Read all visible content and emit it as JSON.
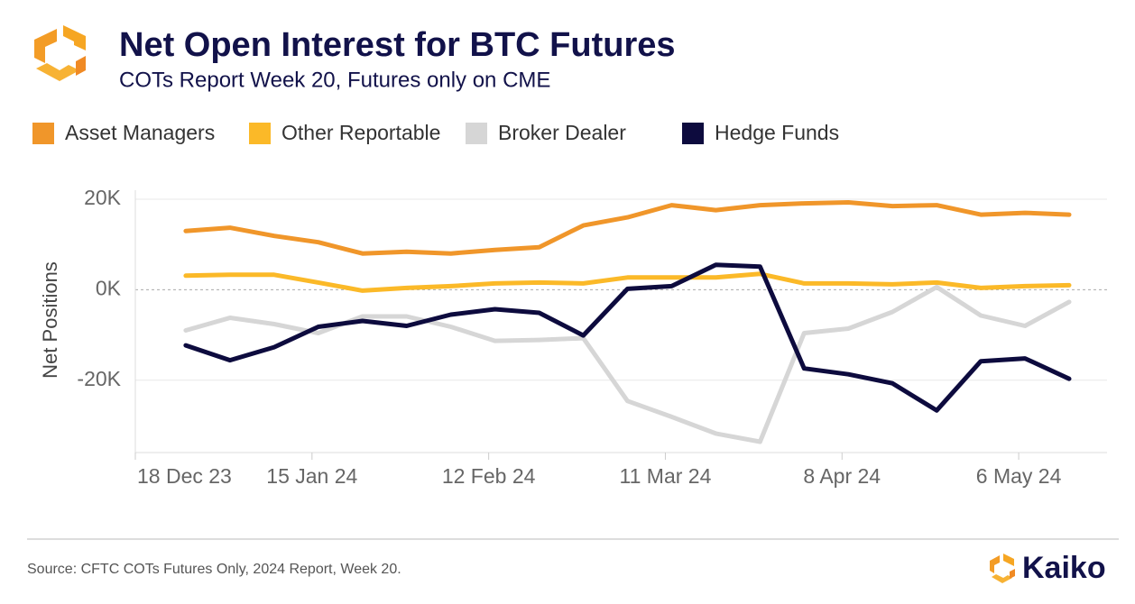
{
  "chart_data": {
    "type": "line",
    "title": "Net Open Interest for BTC Futures",
    "subtitle": "COTs Report Week 20, Futures only on CME",
    "y_label": "Net Positions",
    "source": "Source: CFTC COTs Futures Only, 2024 Report, Week 20.",
    "brand": "Kaiko",
    "x": [
      "2023-12-26",
      "2024-01-02",
      "2024-01-09",
      "2024-01-16",
      "2024-01-23",
      "2024-01-30",
      "2024-02-06",
      "2024-02-13",
      "2024-02-20",
      "2024-02-27",
      "2024-03-05",
      "2024-03-12",
      "2024-03-19",
      "2024-03-26",
      "2024-04-02",
      "2024-04-09",
      "2024-04-16",
      "2024-04-23",
      "2024-04-30",
      "2024-05-07",
      "2024-05-14"
    ],
    "xlim": [
      "2023-12-18",
      "2024-05-20"
    ],
    "xticks": [
      {
        "value": "2023-12-18",
        "label": "18 Dec 23"
      },
      {
        "value": "2024-01-15",
        "label": "15 Jan 24"
      },
      {
        "value": "2024-02-12",
        "label": "12 Feb 24"
      },
      {
        "value": "2024-03-11",
        "label": "11 Mar 24"
      },
      {
        "value": "2024-04-08",
        "label": "8 Apr 24"
      },
      {
        "value": "2024-05-06",
        "label": "6 May 24"
      }
    ],
    "ylim": [
      -36000,
      22000
    ],
    "yticks": [
      {
        "value": -20000,
        "label": "-20K"
      },
      {
        "value": 0,
        "label": "0K"
      },
      {
        "value": 20000,
        "label": "20K"
      }
    ],
    "grid": true,
    "legend": "top",
    "series": [
      {
        "name": "Asset Managers",
        "color": "#f0962a",
        "values": [
          13000,
          13700,
          11900,
          10500,
          8000,
          8400,
          8000,
          8800,
          9400,
          14200,
          16000,
          18700,
          17600,
          18700,
          19100,
          19300,
          18500,
          18700,
          16600,
          17000,
          16600
        ]
      },
      {
        "name": "Other Reportable",
        "color": "#fbb928",
        "values": [
          3100,
          3300,
          3300,
          1600,
          -200,
          400,
          800,
          1400,
          1600,
          1400,
          2700,
          2700,
          2700,
          3500,
          1400,
          1400,
          1200,
          1600,
          400,
          800,
          1000
        ]
      },
      {
        "name": "Broker Dealer",
        "color": "#d6d6d6",
        "values": [
          -9000,
          -6200,
          -7600,
          -9600,
          -5900,
          -5900,
          -8200,
          -11300,
          -11100,
          -10700,
          -24600,
          -28100,
          -31800,
          -33600,
          -9600,
          -8600,
          -4900,
          600,
          -5700,
          -8000,
          -2700
        ]
      },
      {
        "name": "Hedge Funds",
        "color": "#0d0b3e",
        "values": [
          -12300,
          -15600,
          -12700,
          -8200,
          -6900,
          -8000,
          -5500,
          -4300,
          -5100,
          -10100,
          200,
          800,
          5500,
          5100,
          -17400,
          -18700,
          -20700,
          -26700,
          -15800,
          -15200,
          -19700
        ]
      }
    ]
  }
}
